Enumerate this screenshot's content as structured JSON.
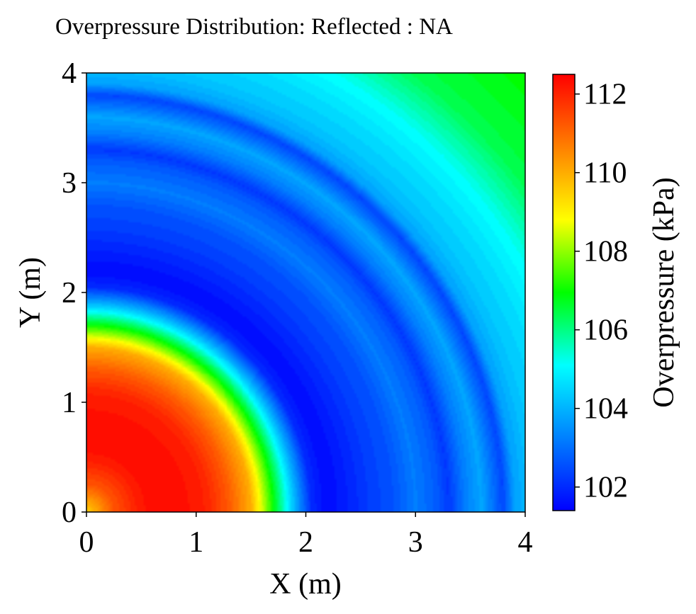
{
  "chart_data": {
    "type": "heatmap",
    "title": "Overpressure Distribution: Reflected : NA",
    "xlabel": "X (m)",
    "ylabel": "Y (m)",
    "colorbar_label": "Overpressure (kPa)",
    "xlim": [
      0,
      4
    ],
    "ylim": [
      0,
      4
    ],
    "x_ticks": [
      0,
      1,
      2,
      3,
      4
    ],
    "y_ticks": [
      0,
      1,
      2,
      3,
      4
    ],
    "x_tick_labels": [
      "0",
      "1",
      "2",
      "3",
      "4"
    ],
    "y_tick_labels": [
      "0",
      "1",
      "2",
      "3",
      "4"
    ],
    "colorbar_range": [
      101.4,
      112.5
    ],
    "colorbar_ticks": [
      102,
      104,
      106,
      108,
      110,
      112
    ],
    "colorbar_tick_labels": [
      "102",
      "104",
      "106",
      "108",
      "110",
      "112"
    ],
    "colormap": [
      "#0000ff",
      "#0080ff",
      "#00ffff",
      "#00ff00",
      "#ffff00",
      "#ff8000",
      "#ff0000"
    ],
    "grid": false,
    "radial_profile": {
      "r": [
        0,
        0.25,
        0.5,
        0.8,
        1.1,
        1.3,
        1.5,
        1.7,
        1.9,
        2.05,
        2.2,
        2.35,
        2.6,
        2.8,
        3.0,
        3.2,
        3.3,
        3.45,
        3.6,
        3.8,
        3.9,
        4.05,
        4.3,
        4.6,
        5.0,
        5.66
      ],
      "value": [
        109.5,
        111.3,
        112.2,
        112.4,
        112.0,
        111.2,
        110.0,
        107.0,
        104.0,
        102.0,
        101.5,
        101.8,
        102.3,
        102.6,
        103.2,
        102.7,
        102.2,
        103.2,
        103.8,
        102.4,
        103.7,
        104.2,
        104.6,
        105.2,
        106.4,
        107.0
      ]
    }
  }
}
